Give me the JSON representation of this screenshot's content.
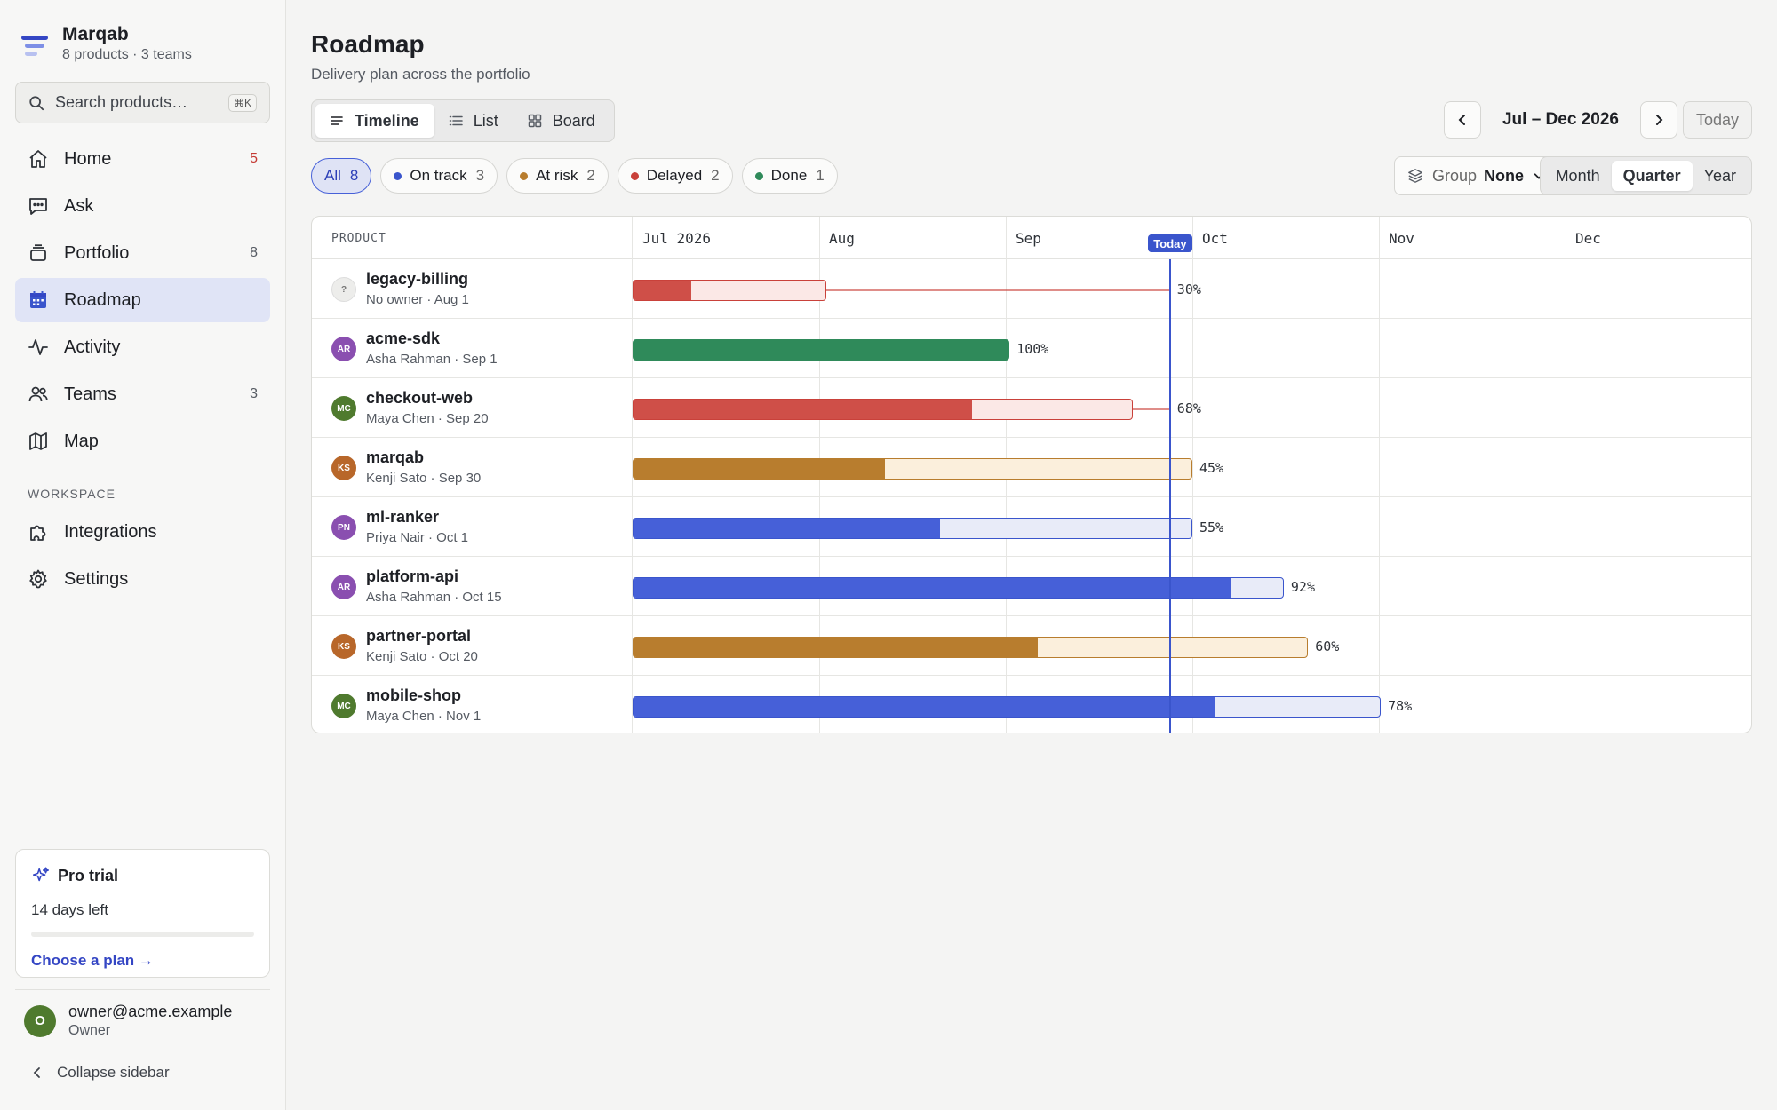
{
  "brand": {
    "name": "Marqab",
    "sub": "8 products · 3 teams"
  },
  "search": {
    "placeholder": "Search products…",
    "shortcut": "⌘K"
  },
  "nav": [
    {
      "label": "Home",
      "count": "5",
      "icon": "home-icon"
    },
    {
      "label": "Ask",
      "count": "",
      "icon": "chat-icon"
    },
    {
      "label": "Portfolio",
      "count": "8",
      "icon": "layers-icon"
    },
    {
      "label": "Roadmap",
      "count": "",
      "icon": "calendar-icon"
    },
    {
      "label": "Activity",
      "count": "",
      "icon": "pulse-icon"
    },
    {
      "label": "Teams",
      "count": "3",
      "icon": "users-icon"
    },
    {
      "label": "Map",
      "count": "",
      "icon": "map-icon"
    }
  ],
  "workspace": {
    "label": "WORKSPACE",
    "items": [
      {
        "label": "Integrations",
        "icon": "puzzle-icon"
      },
      {
        "label": "Settings",
        "icon": "gear-icon"
      }
    ]
  },
  "trial": {
    "title": "Pro trial",
    "days": "14 days left",
    "link": "Choose a plan →"
  },
  "user": {
    "initial": "O",
    "email": "owner@acme.example",
    "role": "Owner"
  },
  "collapse_label": "Collapse sidebar",
  "page": {
    "title": "Roadmap",
    "subtitle": "Delivery plan across the portfolio"
  },
  "views": [
    {
      "label": "Timeline",
      "active": true
    },
    {
      "label": "List",
      "active": false
    },
    {
      "label": "Board",
      "active": false
    }
  ],
  "date_range": {
    "label": "Jul – Dec 2026",
    "today": "Today"
  },
  "filters": [
    {
      "label": "All",
      "count": "8",
      "color": "",
      "active": true
    },
    {
      "label": "On track",
      "count": "3",
      "color": "#3a55cc",
      "active": false
    },
    {
      "label": "At risk",
      "count": "2",
      "color": "#b87d2e",
      "active": false
    },
    {
      "label": "Delayed",
      "count": "2",
      "color": "#c9413a",
      "active": false
    },
    {
      "label": "Done",
      "count": "1",
      "color": "#2f8a5a",
      "active": false
    }
  ],
  "group": {
    "label": "Group",
    "value": "None"
  },
  "scales": [
    {
      "label": "Month",
      "active": false
    },
    {
      "label": "Quarter",
      "active": true
    },
    {
      "label": "Year",
      "active": false
    }
  ],
  "timeline": {
    "column_label": "PRODUCT",
    "months": [
      "Jul 2026",
      "Aug",
      "Sep",
      "Oct",
      "Nov",
      "Dec"
    ],
    "today_label": "Today",
    "today_position": 0.88,
    "products": [
      {
        "name": "legacy-billing",
        "meta": "No owner · Aug 1",
        "initials": "?",
        "avatar_color": "",
        "status": "delayed",
        "end": 1.04,
        "progress": 0.3,
        "percent": "30%"
      },
      {
        "name": "acme-sdk",
        "meta": "Asha Rahman · Sep 1",
        "initials": "AR",
        "avatar_color": "#8a4fb0",
        "status": "done",
        "end": 2.02,
        "progress": 1.0,
        "percent": "100%"
      },
      {
        "name": "checkout-web",
        "meta": "Maya Chen · Sep 20",
        "initials": "MC",
        "avatar_color": "#4f7a2e",
        "status": "delayed",
        "end": 2.68,
        "progress": 0.68,
        "percent": "68%"
      },
      {
        "name": "marqab",
        "meta": "Kenji Sato · Sep 30",
        "initials": "KS",
        "avatar_color": "#b8672a",
        "status": "at-risk",
        "end": 3.0,
        "progress": 0.45,
        "percent": "45%"
      },
      {
        "name": "ml-ranker",
        "meta": "Priya Nair · Oct 1",
        "initials": "PN",
        "avatar_color": "#8a4fb0",
        "status": "on-track",
        "end": 3.0,
        "progress": 0.55,
        "percent": "55%"
      },
      {
        "name": "platform-api",
        "meta": "Asha Rahman · Oct 15",
        "initials": "AR",
        "avatar_color": "#8a4fb0",
        "status": "on-track",
        "end": 3.49,
        "progress": 0.92,
        "percent": "92%"
      },
      {
        "name": "partner-portal",
        "meta": "Kenji Sato · Oct 20",
        "initials": "KS",
        "avatar_color": "#b8672a",
        "status": "at-risk",
        "end": 3.62,
        "progress": 0.6,
        "percent": "60%"
      },
      {
        "name": "mobile-shop",
        "meta": "Maya Chen · Nov 1",
        "initials": "MC",
        "avatar_color": "#4f7a2e",
        "status": "on-track",
        "end": 4.01,
        "progress": 0.78,
        "percent": "78%"
      }
    ]
  },
  "status_colors": {
    "delayed": {
      "fill": "#cf4f48",
      "bg": "#fbe8e6",
      "border": "#c9413a"
    },
    "done": {
      "fill": "#2f8a5a",
      "bg": "#2f8a5a",
      "border": "#2f8a5a"
    },
    "at-risk": {
      "fill": "#b87d2e",
      "bg": "#fbefdc",
      "border": "#b87d2e"
    },
    "on-track": {
      "fill": "#4660d8",
      "bg": "#e8ebf8",
      "border": "#3a55cc"
    }
  }
}
